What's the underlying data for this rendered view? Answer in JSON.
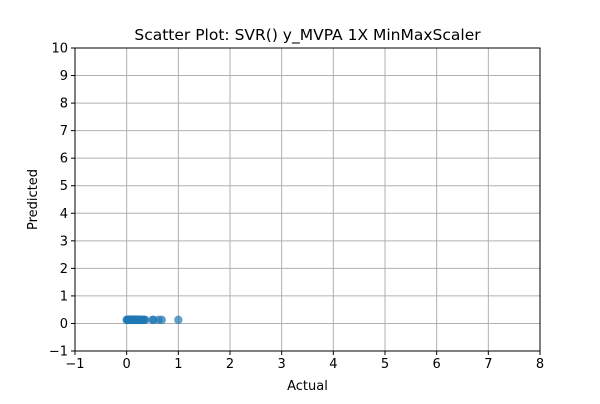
{
  "chart_data": {
    "type": "scatter",
    "title": "Scatter Plot: SVR() y_MVPA 1X MinMaxScaler",
    "xlabel": "Actual",
    "ylabel": "Predicted",
    "xlim": [
      -1,
      8
    ],
    "ylim": [
      -1,
      10
    ],
    "xticks": [
      -1,
      0,
      1,
      2,
      3,
      4,
      5,
      6,
      7,
      8
    ],
    "yticks": [
      -1,
      0,
      1,
      2,
      3,
      4,
      5,
      6,
      7,
      8,
      9,
      10
    ],
    "xtick_labels": [
      "−1",
      "0",
      "1",
      "2",
      "3",
      "4",
      "5",
      "6",
      "7",
      "8"
    ],
    "ytick_labels": [
      "−1",
      "0",
      "1",
      "2",
      "3",
      "4",
      "5",
      "6",
      "7",
      "8",
      "9",
      "10"
    ],
    "grid": true,
    "marker_color": "#1f77b4",
    "marker_alpha": 0.7,
    "points": [
      {
        "x": 0.0,
        "y": 0.13
      },
      {
        "x": 0.01,
        "y": 0.13
      },
      {
        "x": 0.02,
        "y": 0.13
      },
      {
        "x": 0.03,
        "y": 0.13
      },
      {
        "x": 0.04,
        "y": 0.14
      },
      {
        "x": 0.05,
        "y": 0.13
      },
      {
        "x": 0.06,
        "y": 0.13
      },
      {
        "x": 0.07,
        "y": 0.13
      },
      {
        "x": 0.08,
        "y": 0.14
      },
      {
        "x": 0.09,
        "y": 0.13
      },
      {
        "x": 0.1,
        "y": 0.13
      },
      {
        "x": 0.11,
        "y": 0.13
      },
      {
        "x": 0.12,
        "y": 0.14
      },
      {
        "x": 0.13,
        "y": 0.13
      },
      {
        "x": 0.14,
        "y": 0.13
      },
      {
        "x": 0.15,
        "y": 0.13
      },
      {
        "x": 0.16,
        "y": 0.13
      },
      {
        "x": 0.17,
        "y": 0.14
      },
      {
        "x": 0.18,
        "y": 0.13
      },
      {
        "x": 0.19,
        "y": 0.13
      },
      {
        "x": 0.2,
        "y": 0.13
      },
      {
        "x": 0.21,
        "y": 0.13
      },
      {
        "x": 0.22,
        "y": 0.14
      },
      {
        "x": 0.23,
        "y": 0.13
      },
      {
        "x": 0.25,
        "y": 0.13
      },
      {
        "x": 0.26,
        "y": 0.13
      },
      {
        "x": 0.28,
        "y": 0.13
      },
      {
        "x": 0.3,
        "y": 0.13
      },
      {
        "x": 0.32,
        "y": 0.13
      },
      {
        "x": 0.34,
        "y": 0.13
      },
      {
        "x": 0.36,
        "y": 0.13
      },
      {
        "x": 0.5,
        "y": 0.13
      },
      {
        "x": 0.52,
        "y": 0.13
      },
      {
        "x": 0.62,
        "y": 0.13
      },
      {
        "x": 0.68,
        "y": 0.13
      },
      {
        "x": 1.0,
        "y": 0.13
      }
    ]
  }
}
